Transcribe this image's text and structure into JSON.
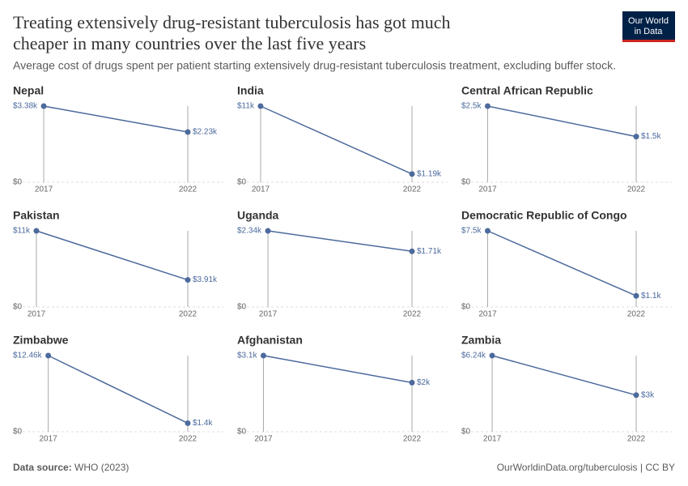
{
  "title_lines": [
    "Treating extensively drug-resistant tuberculosis has got much",
    "cheaper in many countries over the last five years"
  ],
  "subtitle": "Average cost of drugs spent per patient starting extensively drug-resistant tuberculosis treatment, excluding buffer stock.",
  "logo": [
    "Our World",
    "in Data"
  ],
  "source_label": "Data source:",
  "source": "WHO (2023)",
  "url": "OurWorldinData.org/tuberculosis | CC BY",
  "chart_data": [
    {
      "type": "line",
      "title": "Nepal",
      "x": [
        2017,
        2022
      ],
      "values": [
        3380,
        2230
      ],
      "value_labels": [
        "$3.38k",
        "$2.23k"
      ],
      "color": "#4c6a9c",
      "xlim": [
        2017,
        2022
      ],
      "xticks": [
        2017,
        2022
      ],
      "ylim": [
        0,
        3380
      ],
      "yticks": [
        {
          "value": 0,
          "label": "$0"
        }
      ]
    },
    {
      "type": "line",
      "title": "India",
      "x": [
        2017,
        2022
      ],
      "values": [
        11000,
        1190
      ],
      "value_labels": [
        "$11k",
        "$1.19k"
      ],
      "color": "#4c6a9c",
      "xlim": [
        2017,
        2022
      ],
      "xticks": [
        2017,
        2022
      ],
      "ylim": [
        0,
        11000
      ],
      "yticks": [
        {
          "value": 0,
          "label": "$0"
        }
      ]
    },
    {
      "type": "line",
      "title": "Central African Republic",
      "x": [
        2017,
        2022
      ],
      "values": [
        2500,
        1500
      ],
      "value_labels": [
        "$2.5k",
        "$1.5k"
      ],
      "color": "#4c6a9c",
      "xlim": [
        2017,
        2022
      ],
      "xticks": [
        2017,
        2022
      ],
      "ylim": [
        0,
        2500
      ],
      "yticks": [
        {
          "value": 0,
          "label": "$0"
        }
      ]
    },
    {
      "type": "line",
      "title": "Pakistan",
      "x": [
        2017,
        2022
      ],
      "values": [
        11000,
        3910
      ],
      "value_labels": [
        "$11k",
        "$3.91k"
      ],
      "color": "#4c6a9c",
      "xlim": [
        2017,
        2022
      ],
      "xticks": [
        2017,
        2022
      ],
      "ylim": [
        0,
        11000
      ],
      "yticks": [
        {
          "value": 0,
          "label": "$0"
        }
      ]
    },
    {
      "type": "line",
      "title": "Uganda",
      "x": [
        2017,
        2022
      ],
      "values": [
        2340,
        1710
      ],
      "value_labels": [
        "$2.34k",
        "$1.71k"
      ],
      "color": "#4c6a9c",
      "xlim": [
        2017,
        2022
      ],
      "xticks": [
        2017,
        2022
      ],
      "ylim": [
        0,
        2340
      ],
      "yticks": [
        {
          "value": 0,
          "label": "$0"
        }
      ]
    },
    {
      "type": "line",
      "title": "Democratic Republic of Congo",
      "x": [
        2017,
        2022
      ],
      "values": [
        7500,
        1100
      ],
      "value_labels": [
        "$7.5k",
        "$1.1k"
      ],
      "color": "#4c6a9c",
      "xlim": [
        2017,
        2022
      ],
      "xticks": [
        2017,
        2022
      ],
      "ylim": [
        0,
        7500
      ],
      "yticks": [
        {
          "value": 0,
          "label": "$0"
        }
      ]
    },
    {
      "type": "line",
      "title": "Zimbabwe",
      "x": [
        2017,
        2022
      ],
      "values": [
        12460,
        1400
      ],
      "value_labels": [
        "$12.46k",
        "$1.4k"
      ],
      "color": "#4c6a9c",
      "xlim": [
        2017,
        2022
      ],
      "xticks": [
        2017,
        2022
      ],
      "ylim": [
        0,
        12460
      ],
      "yticks": [
        {
          "value": 0,
          "label": "$0"
        }
      ]
    },
    {
      "type": "line",
      "title": "Afghanistan",
      "x": [
        2017,
        2022
      ],
      "values": [
        3100,
        2000
      ],
      "value_labels": [
        "$3.1k",
        "$2k"
      ],
      "color": "#4c6a9c",
      "xlim": [
        2017,
        2022
      ],
      "xticks": [
        2017,
        2022
      ],
      "ylim": [
        0,
        3100
      ],
      "yticks": [
        {
          "value": 0,
          "label": "$0"
        }
      ]
    },
    {
      "type": "line",
      "title": "Zambia",
      "x": [
        2017,
        2022
      ],
      "values": [
        6240,
        3000
      ],
      "value_labels": [
        "$6.24k",
        "$3k"
      ],
      "color": "#4c6a9c",
      "xlim": [
        2017,
        2022
      ],
      "xticks": [
        2017,
        2022
      ],
      "ylim": [
        0,
        6240
      ],
      "yticks": [
        {
          "value": 0,
          "label": "$0"
        }
      ]
    }
  ]
}
